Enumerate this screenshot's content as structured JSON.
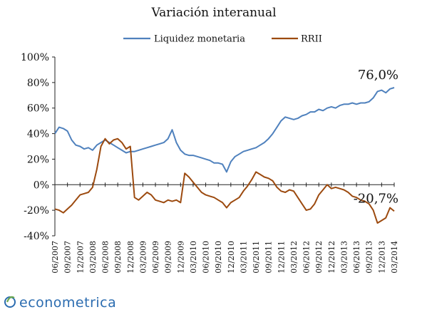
{
  "brand": {
    "name": "econometrica"
  },
  "colors": {
    "liquidez": "#4f81bd",
    "rrii": "#9c4a0f",
    "logo": "#2b6cb0",
    "logo_accent": "#6aa84f"
  },
  "chart_data": {
    "type": "line",
    "title": "Variación interanual",
    "xlabel": "",
    "ylabel": "",
    "ylim": [
      -40,
      100
    ],
    "y_ticks": [
      "100%",
      "80%",
      "60%",
      "40%",
      "20%",
      "0%",
      "-20%",
      "-40%"
    ],
    "y_tick_values": [
      100,
      80,
      60,
      40,
      20,
      0,
      -20,
      -40
    ],
    "x_ticks": [
      "06/2007",
      "09/2007",
      "12/2007",
      "03/2008",
      "06/2008",
      "09/2008",
      "12/2008",
      "03/2009",
      "06/2009",
      "09/2009",
      "12/2009",
      "03/2010",
      "06/2010",
      "09/2010",
      "12/2010",
      "03/2011",
      "06/2011",
      "09/2011",
      "12/2011",
      "03/2012",
      "06/2012",
      "09/2012",
      "12/2012",
      "03/2013",
      "06/2013",
      "09/2013",
      "12/2013",
      "03/2014"
    ],
    "x_range": [
      "2007-06",
      "2014-03"
    ],
    "grid": false,
    "legend_position": "top",
    "series": [
      {
        "name": "Liquidez monetaria",
        "color": "#4f81bd",
        "points": [
          [
            "2007-06",
            40
          ],
          [
            "2007-07",
            45
          ],
          [
            "2007-08",
            44
          ],
          [
            "2007-09",
            42
          ],
          [
            "2007-10",
            35
          ],
          [
            "2007-11",
            31
          ],
          [
            "2007-12",
            30
          ],
          [
            "2008-01",
            28
          ],
          [
            "2008-02",
            29
          ],
          [
            "2008-03",
            27
          ],
          [
            "2008-04",
            31
          ],
          [
            "2008-05",
            33
          ],
          [
            "2008-06",
            35
          ],
          [
            "2008-07",
            33
          ],
          [
            "2008-08",
            31
          ],
          [
            "2008-09",
            29
          ],
          [
            "2008-10",
            27
          ],
          [
            "2008-11",
            25
          ],
          [
            "2008-12",
            26
          ],
          [
            "2009-01",
            26
          ],
          [
            "2009-02",
            27
          ],
          [
            "2009-03",
            28
          ],
          [
            "2009-04",
            29
          ],
          [
            "2009-05",
            30
          ],
          [
            "2009-06",
            31
          ],
          [
            "2009-07",
            32
          ],
          [
            "2009-08",
            33
          ],
          [
            "2009-09",
            36
          ],
          [
            "2009-10",
            43
          ],
          [
            "2009-11",
            33
          ],
          [
            "2009-12",
            27
          ],
          [
            "2010-01",
            24
          ],
          [
            "2010-02",
            23
          ],
          [
            "2010-03",
            23
          ],
          [
            "2010-04",
            22
          ],
          [
            "2010-05",
            21
          ],
          [
            "2010-06",
            20
          ],
          [
            "2010-07",
            19
          ],
          [
            "2010-08",
            17
          ],
          [
            "2010-09",
            17
          ],
          [
            "2010-10",
            16
          ],
          [
            "2010-11",
            10
          ],
          [
            "2010-12",
            18
          ],
          [
            "2011-01",
            22
          ],
          [
            "2011-02",
            24
          ],
          [
            "2011-03",
            26
          ],
          [
            "2011-04",
            27
          ],
          [
            "2011-05",
            28
          ],
          [
            "2011-06",
            29
          ],
          [
            "2011-07",
            31
          ],
          [
            "2011-08",
            33
          ],
          [
            "2011-09",
            36
          ],
          [
            "2011-10",
            40
          ],
          [
            "2011-11",
            45
          ],
          [
            "2011-12",
            50
          ],
          [
            "2012-01",
            53
          ],
          [
            "2012-02",
            52
          ],
          [
            "2012-03",
            51
          ],
          [
            "2012-04",
            52
          ],
          [
            "2012-05",
            54
          ],
          [
            "2012-06",
            55
          ],
          [
            "2012-07",
            57
          ],
          [
            "2012-08",
            57
          ],
          [
            "2012-09",
            59
          ],
          [
            "2012-10",
            58
          ],
          [
            "2012-11",
            60
          ],
          [
            "2012-12",
            61
          ],
          [
            "2013-01",
            60
          ],
          [
            "2013-02",
            62
          ],
          [
            "2013-03",
            63
          ],
          [
            "2013-04",
            63
          ],
          [
            "2013-05",
            64
          ],
          [
            "2013-06",
            63
          ],
          [
            "2013-07",
            64
          ],
          [
            "2013-08",
            64
          ],
          [
            "2013-09",
            65
          ],
          [
            "2013-10",
            68
          ],
          [
            "2013-11",
            73
          ],
          [
            "2013-12",
            74
          ],
          [
            "2014-01",
            72
          ],
          [
            "2014-02",
            75
          ],
          [
            "2014-03",
            76
          ]
        ]
      },
      {
        "name": "RRII",
        "color": "#9c4a0f",
        "points": [
          [
            "2007-06",
            -19
          ],
          [
            "2007-07",
            -20
          ],
          [
            "2007-08",
            -22
          ],
          [
            "2007-09",
            -19
          ],
          [
            "2007-10",
            -16
          ],
          [
            "2007-11",
            -12
          ],
          [
            "2007-12",
            -8
          ],
          [
            "2008-01",
            -7
          ],
          [
            "2008-02",
            -6
          ],
          [
            "2008-03",
            -2
          ],
          [
            "2008-04",
            12
          ],
          [
            "2008-05",
            30
          ],
          [
            "2008-06",
            36
          ],
          [
            "2008-07",
            32
          ],
          [
            "2008-08",
            35
          ],
          [
            "2008-09",
            36
          ],
          [
            "2008-10",
            33
          ],
          [
            "2008-11",
            28
          ],
          [
            "2008-12",
            30
          ],
          [
            "2009-01",
            -10
          ],
          [
            "2009-02",
            -12
          ],
          [
            "2009-03",
            -9
          ],
          [
            "2009-04",
            -6
          ],
          [
            "2009-05",
            -8
          ],
          [
            "2009-06",
            -12
          ],
          [
            "2009-07",
            -13
          ],
          [
            "2009-08",
            -14
          ],
          [
            "2009-09",
            -12
          ],
          [
            "2009-10",
            -13
          ],
          [
            "2009-11",
            -12
          ],
          [
            "2009-12",
            -14
          ],
          [
            "2010-01",
            9
          ],
          [
            "2010-02",
            6
          ],
          [
            "2010-03",
            2
          ],
          [
            "2010-04",
            -2
          ],
          [
            "2010-05",
            -6
          ],
          [
            "2010-06",
            -8
          ],
          [
            "2010-07",
            -9
          ],
          [
            "2010-08",
            -10
          ],
          [
            "2010-09",
            -12
          ],
          [
            "2010-10",
            -14
          ],
          [
            "2010-11",
            -18
          ],
          [
            "2010-12",
            -14
          ],
          [
            "2011-01",
            -12
          ],
          [
            "2011-02",
            -10
          ],
          [
            "2011-03",
            -5
          ],
          [
            "2011-04",
            -1
          ],
          [
            "2011-05",
            4
          ],
          [
            "2011-06",
            10
          ],
          [
            "2011-07",
            8
          ],
          [
            "2011-08",
            6
          ],
          [
            "2011-09",
            5
          ],
          [
            "2011-10",
            3
          ],
          [
            "2011-11",
            -2
          ],
          [
            "2011-12",
            -5
          ],
          [
            "2012-01",
            -6
          ],
          [
            "2012-02",
            -4
          ],
          [
            "2012-03",
            -5
          ],
          [
            "2012-04",
            -10
          ],
          [
            "2012-05",
            -15
          ],
          [
            "2012-06",
            -20
          ],
          [
            "2012-07",
            -19
          ],
          [
            "2012-08",
            -15
          ],
          [
            "2012-09",
            -8
          ],
          [
            "2012-10",
            -4
          ],
          [
            "2012-11",
            0
          ],
          [
            "2012-12",
            -3
          ],
          [
            "2013-01",
            -2
          ],
          [
            "2013-02",
            -3
          ],
          [
            "2013-03",
            -4
          ],
          [
            "2013-04",
            -6
          ],
          [
            "2013-05",
            -9
          ],
          [
            "2013-06",
            -10
          ],
          [
            "2013-07",
            -12
          ],
          [
            "2013-08",
            -13
          ],
          [
            "2013-09",
            -15
          ],
          [
            "2013-10",
            -20
          ],
          [
            "2013-11",
            -30
          ],
          [
            "2013-12",
            -28
          ],
          [
            "2014-01",
            -26
          ],
          [
            "2014-02",
            -18
          ],
          [
            "2014-03",
            -20.7
          ]
        ]
      }
    ],
    "annotations": [
      {
        "text": "76,0%",
        "series": "Liquidez monetaria",
        "x": "2014-03",
        "y": 76
      },
      {
        "text": "-20,7%",
        "series": "RRII",
        "x": "2014-03",
        "y": -20.7
      }
    ]
  }
}
